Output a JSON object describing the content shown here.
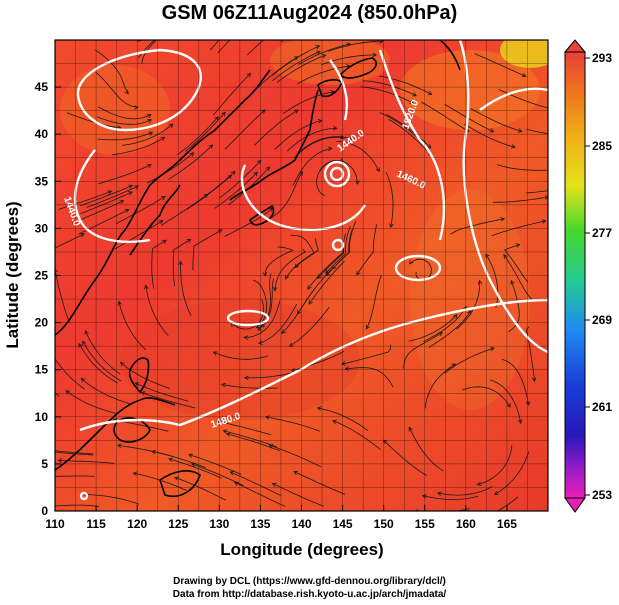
{
  "title": "GSM 06Z11Aug2024 (850.0hPa)",
  "x_axis": {
    "label": "Longitude (degrees)",
    "ticks": [
      "110",
      "115",
      "120",
      "125",
      "130",
      "135",
      "140",
      "145",
      "150",
      "155",
      "160",
      "165"
    ]
  },
  "y_axis": {
    "label": "Latitude  (degrees)",
    "ticks": [
      "0",
      "5",
      "10",
      "15",
      "20",
      "25",
      "30",
      "35",
      "40",
      "45"
    ]
  },
  "colorbar": {
    "labels": [
      "293",
      "285",
      "277",
      "269",
      "261",
      "253"
    ],
    "colors": [
      "#e8403a",
      "#f07a1c",
      "#f0b418",
      "#e6e21c",
      "#46d82c",
      "#22c898",
      "#1e8cf0",
      "#1a3cd8",
      "#2818b8",
      "#a01cc8",
      "#e820b4"
    ]
  },
  "contours": {
    "labels": [
      "1440.0",
      "1440.0",
      "1520.0",
      "1460.0",
      "1480.0"
    ]
  },
  "credits": [
    "Drawing by DCL (https://www.gfd-dennou.org/library/dcl/)",
    "Data from http://database.rish.kyoto-u.ac.jp/arch/jmadata/"
  ]
}
